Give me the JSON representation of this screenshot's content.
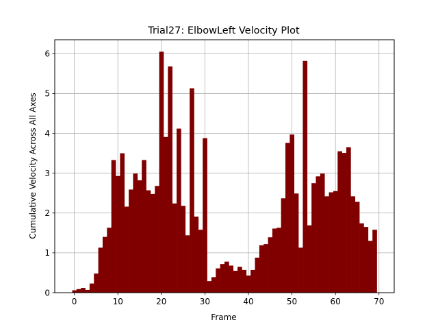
{
  "chart_data": {
    "type": "bar",
    "title": "Trial27: ElbowLeft Velocity Plot",
    "xlabel": "Frame",
    "ylabel": "Cumulative Velocity Across All Axes",
    "xlim": [
      -4.5,
      73.5
    ],
    "ylim": [
      0,
      6.35
    ],
    "xticks": [
      0,
      10,
      20,
      30,
      40,
      50,
      60,
      70
    ],
    "yticks": [
      0,
      1,
      2,
      3,
      4,
      5,
      6
    ],
    "grid": true,
    "bar_color": "#800000",
    "x": [
      0,
      1,
      2,
      3,
      4,
      5,
      6,
      7,
      8,
      9,
      10,
      11,
      12,
      13,
      14,
      15,
      16,
      17,
      18,
      19,
      20,
      21,
      22,
      23,
      24,
      25,
      26,
      27,
      28,
      29,
      30,
      31,
      32,
      33,
      34,
      35,
      36,
      37,
      38,
      39,
      40,
      41,
      42,
      43,
      44,
      45,
      46,
      47,
      48,
      49,
      50,
      51,
      52,
      53,
      54,
      55,
      56,
      57,
      58,
      59,
      60,
      61,
      62,
      63,
      64,
      65,
      66,
      67,
      68,
      69
    ],
    "values": [
      0.06,
      0.09,
      0.12,
      0.07,
      0.23,
      0.48,
      1.13,
      1.4,
      1.63,
      3.33,
      2.93,
      3.5,
      2.16,
      2.59,
      2.99,
      2.82,
      3.33,
      2.57,
      2.48,
      2.68,
      6.05,
      3.91,
      5.68,
      2.24,
      4.12,
      2.18,
      1.44,
      5.13,
      1.91,
      1.58,
      3.88,
      0.29,
      0.39,
      0.61,
      0.72,
      0.78,
      0.68,
      0.55,
      0.65,
      0.57,
      0.43,
      0.57,
      0.88,
      1.19,
      1.22,
      1.39,
      1.61,
      1.63,
      2.37,
      3.76,
      3.97,
      2.49,
      1.13,
      5.82,
      1.69,
      2.75,
      2.92,
      2.99,
      2.42,
      2.52,
      2.55,
      3.55,
      3.51,
      3.65,
      2.42,
      2.28,
      1.74,
      1.65,
      1.3,
      1.58
    ]
  }
}
